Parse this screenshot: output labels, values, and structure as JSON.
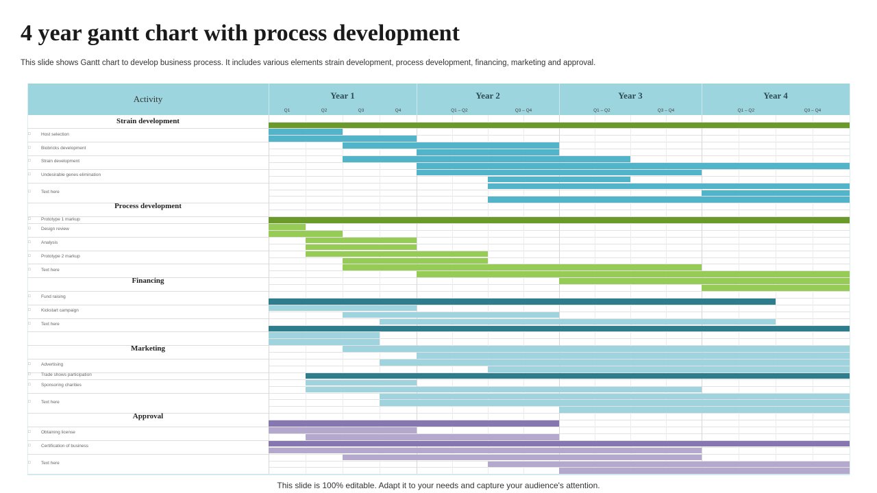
{
  "title": "4 year gantt chart with process development",
  "subtitle": "This slide shows Gantt chart to develop business process. It includes various elements strain development, process development, financing, marketing and approval.",
  "footer": "This slide is 100% editable. Adapt it to your needs and capture your audience's attention.",
  "chart_data": {
    "type": "gantt",
    "activity_header": "Activity",
    "years": [
      {
        "label": "Year 1",
        "periods": [
          "Q1",
          "Q2",
          "Q3",
          "Q4"
        ]
      },
      {
        "label": "Year 2",
        "periods": [
          "Q1 – Q2",
          "Q3 – Q4"
        ]
      },
      {
        "label": "Year 3",
        "periods": [
          "Q1 – Q2",
          "Q3 – Q4"
        ]
      },
      {
        "label": "Year 4",
        "periods": [
          "Q1 – Q2",
          "Q3 – Q4"
        ]
      }
    ],
    "time_unit": "quarters from start of Year 1",
    "range": [
      0,
      16
    ],
    "rows": [
      {
        "kind": "section",
        "label": "Strain development",
        "lanes": [
          0,
          0
        ]
      },
      {
        "kind": "item",
        "label": "Host selection",
        "lanes": [
          1,
          2
        ]
      },
      {
        "kind": "item",
        "label": "Biobricks development",
        "lanes": [
          3,
          4
        ]
      },
      {
        "kind": "item",
        "label": "Strain development",
        "lanes": [
          5,
          6
        ]
      },
      {
        "kind": "item",
        "label": "Undesirable genes elimination",
        "lanes": [
          7,
          8
        ]
      },
      {
        "kind": "item",
        "label": "Text here",
        "lanes": [
          9,
          11
        ]
      },
      {
        "kind": "section",
        "label": "Process development",
        "lanes": [
          12,
          13
        ]
      },
      {
        "kind": "item",
        "label": "Prototype 1 markup",
        "lanes": [
          14,
          14
        ]
      },
      {
        "kind": "item",
        "label": "Design review",
        "lanes": [
          15,
          16
        ]
      },
      {
        "kind": "item",
        "label": "Analysis",
        "lanes": [
          17,
          18
        ]
      },
      {
        "kind": "item",
        "label": "Prototype 2 markup",
        "lanes": [
          19,
          20
        ]
      },
      {
        "kind": "item",
        "label": "Text here",
        "lanes": [
          21,
          22
        ]
      },
      {
        "kind": "section",
        "label": "Financing",
        "lanes": [
          23,
          24
        ]
      },
      {
        "kind": "item",
        "label": "Fund raising",
        "lanes": [
          25,
          26
        ]
      },
      {
        "kind": "item",
        "label": "Kickstart campaign",
        "lanes": [
          27,
          28
        ]
      },
      {
        "kind": "item",
        "label": "Text here",
        "lanes": [
          29,
          30
        ]
      },
      {
        "kind": "item",
        "label": "",
        "lanes": [
          31,
          32
        ]
      },
      {
        "kind": "section",
        "label": "Marketing",
        "lanes": [
          33,
          34
        ]
      },
      {
        "kind": "item",
        "label": "Advertising",
        "lanes": [
          35,
          36
        ]
      },
      {
        "kind": "item",
        "label": "Trade shows participation",
        "lanes": [
          37,
          37
        ]
      },
      {
        "kind": "item",
        "label": "Sponsoring charities",
        "lanes": [
          38,
          39
        ]
      },
      {
        "kind": "item",
        "label": "Text here",
        "lanes": [
          40,
          42
        ]
      },
      {
        "kind": "section",
        "label": "Approval",
        "lanes": [
          43,
          44
        ]
      },
      {
        "kind": "item",
        "label": "Obtaining license",
        "lanes": [
          45,
          46
        ]
      },
      {
        "kind": "item",
        "label": "Certification of business",
        "lanes": [
          47,
          48
        ]
      },
      {
        "kind": "item",
        "label": "Text here",
        "lanes": [
          49,
          51
        ]
      }
    ],
    "lane_count": 52,
    "colors": {
      "header": "#9dd5de",
      "dark_green": "#6a9a2a",
      "light_green": "#96cc55",
      "teal": "#52b4c8",
      "dark_teal": "#2e7d8c",
      "light_teal": "#9fd4de",
      "dark_purple": "#8677b0",
      "light_purple": "#b4a8cc"
    },
    "bars": [
      {
        "lane": 0,
        "start": 0,
        "end": 16,
        "color": "dark_green"
      },
      {
        "lane": 1,
        "start": 0,
        "end": 2,
        "color": "teal"
      },
      {
        "lane": 2,
        "start": 0,
        "end": 4,
        "color": "teal"
      },
      {
        "lane": 3,
        "start": 2,
        "end": 8,
        "color": "teal"
      },
      {
        "lane": 4,
        "start": 4,
        "end": 8,
        "color": "teal"
      },
      {
        "lane": 5,
        "start": 2,
        "end": 10,
        "color": "teal"
      },
      {
        "lane": 6,
        "start": 4,
        "end": 16,
        "color": "teal"
      },
      {
        "lane": 7,
        "start": 4,
        "end": 12,
        "color": "teal"
      },
      {
        "lane": 8,
        "start": 6,
        "end": 10,
        "color": "teal"
      },
      {
        "lane": 9,
        "start": 6,
        "end": 16,
        "color": "teal"
      },
      {
        "lane": 10,
        "start": 12,
        "end": 16,
        "color": "teal"
      },
      {
        "lane": 11,
        "start": 6,
        "end": 16,
        "color": "teal"
      },
      {
        "lane": 14,
        "start": 0,
        "end": 16,
        "color": "dark_green"
      },
      {
        "lane": 15,
        "start": 0,
        "end": 1,
        "color": "light_green"
      },
      {
        "lane": 16,
        "start": 0,
        "end": 2,
        "color": "light_green"
      },
      {
        "lane": 17,
        "start": 1,
        "end": 4,
        "color": "light_green"
      },
      {
        "lane": 18,
        "start": 1,
        "end": 4,
        "color": "light_green"
      },
      {
        "lane": 19,
        "start": 1,
        "end": 6,
        "color": "light_green"
      },
      {
        "lane": 20,
        "start": 2,
        "end": 6,
        "color": "light_green"
      },
      {
        "lane": 21,
        "start": 2,
        "end": 12,
        "color": "light_green"
      },
      {
        "lane": 22,
        "start": 4,
        "end": 16,
        "color": "light_green"
      },
      {
        "lane": 23,
        "start": 8,
        "end": 16,
        "color": "light_green"
      },
      {
        "lane": 24,
        "start": 12,
        "end": 16,
        "color": "light_green"
      },
      {
        "lane": 26,
        "start": 0,
        "end": 14,
        "color": "dark_teal"
      },
      {
        "lane": 27,
        "start": 0,
        "end": 4,
        "color": "light_teal"
      },
      {
        "lane": 28,
        "start": 2,
        "end": 8,
        "color": "light_teal"
      },
      {
        "lane": 29,
        "start": 3,
        "end": 14,
        "color": "light_teal"
      },
      {
        "lane": 30,
        "start": 0,
        "end": 16,
        "color": "dark_teal"
      },
      {
        "lane": 31,
        "start": 0,
        "end": 3,
        "color": "light_teal"
      },
      {
        "lane": 32,
        "start": 0,
        "end": 3,
        "color": "light_teal"
      },
      {
        "lane": 33,
        "start": 2,
        "end": 16,
        "color": "light_teal"
      },
      {
        "lane": 34,
        "start": 4,
        "end": 16,
        "color": "light_teal"
      },
      {
        "lane": 35,
        "start": 3,
        "end": 16,
        "color": "light_teal"
      },
      {
        "lane": 36,
        "start": 6,
        "end": 16,
        "color": "light_teal"
      },
      {
        "lane": 37,
        "start": 1,
        "end": 16,
        "color": "dark_teal"
      },
      {
        "lane": 38,
        "start": 1,
        "end": 4,
        "color": "light_teal"
      },
      {
        "lane": 39,
        "start": 1,
        "end": 12,
        "color": "light_teal"
      },
      {
        "lane": 40,
        "start": 3,
        "end": 16,
        "color": "light_teal"
      },
      {
        "lane": 41,
        "start": 3,
        "end": 16,
        "color": "light_teal"
      },
      {
        "lane": 42,
        "start": 8,
        "end": 16,
        "color": "light_teal"
      },
      {
        "lane": 44,
        "start": 0,
        "end": 8,
        "color": "dark_purple"
      },
      {
        "lane": 45,
        "start": 0,
        "end": 4,
        "color": "light_purple"
      },
      {
        "lane": 46,
        "start": 1,
        "end": 8,
        "color": "light_purple"
      },
      {
        "lane": 47,
        "start": 0,
        "end": 16,
        "color": "dark_purple"
      },
      {
        "lane": 48,
        "start": 0,
        "end": 12,
        "color": "light_purple"
      },
      {
        "lane": 49,
        "start": 2,
        "end": 12,
        "color": "light_purple"
      },
      {
        "lane": 50,
        "start": 6,
        "end": 16,
        "color": "light_purple"
      },
      {
        "lane": 51,
        "start": 8,
        "end": 16,
        "color": "light_purple"
      }
    ]
  }
}
